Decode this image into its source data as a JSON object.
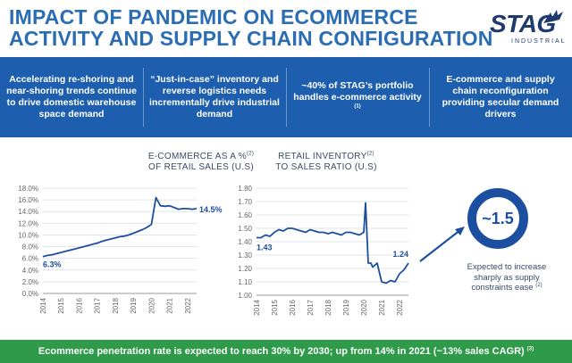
{
  "header": {
    "title_line1": "IMPACT OF PANDEMIC ON ECOMMERCE",
    "title_line2": "ACTIVITY AND SUPPLY CHAIN CONFIGURATION"
  },
  "logo": {
    "word": "STAG",
    "sub": "INDUSTRIAL"
  },
  "banner": {
    "panels": [
      {
        "text": "Accelerating re-shoring and near-shoring trends continue to drive domestic warehouse space demand",
        "note": ""
      },
      {
        "text": "“Just-in-case” inventory and reverse logistics needs incrementally drive industrial demand",
        "note": ""
      },
      {
        "text": "~40% of STAG’s portfolio handles e-commerce activity",
        "note": "(1)"
      },
      {
        "text": "E-commerce and supply chain reconfiguration providing secular demand drivers",
        "note": ""
      }
    ]
  },
  "chart_data": [
    {
      "type": "line",
      "title_line1": "E-COMMERCE AS A %",
      "title_note": "(2)",
      "title_line2": "OF RETAIL SALES (U.S)",
      "x_ticks": [
        "2014",
        "2015",
        "2016",
        "2017",
        "2018",
        "2019",
        "2020",
        "2021",
        "2022"
      ],
      "y_ticks": [
        "0.0%",
        "2.0%",
        "4.0%",
        "6.0%",
        "8.0%",
        "10.0%",
        "12.0%",
        "14.0%",
        "16.0%",
        "18.0%"
      ],
      "ylim": [
        0,
        18
      ],
      "xlim": [
        2014,
        2022.5
      ],
      "grid": true,
      "color": "#1d4fa0",
      "series": [
        {
          "x": [
            2014.0,
            2014.25,
            2014.5,
            2014.75,
            2015.0,
            2015.25,
            2015.5,
            2015.75,
            2016.0,
            2016.25,
            2016.5,
            2016.75,
            2017.0,
            2017.25,
            2017.5,
            2017.75,
            2018.0,
            2018.25,
            2018.5,
            2018.75,
            2019.0,
            2019.25,
            2019.5,
            2019.75,
            2020.0,
            2020.25,
            2020.5,
            2020.75,
            2021.0,
            2021.25,
            2021.5,
            2021.75,
            2022.0,
            2022.25,
            2022.5
          ],
          "y": [
            6.3,
            6.5,
            6.6,
            6.8,
            7.0,
            7.2,
            7.4,
            7.6,
            7.8,
            8.0,
            8.2,
            8.4,
            8.6,
            8.9,
            9.1,
            9.3,
            9.5,
            9.7,
            9.8,
            10.0,
            10.3,
            10.6,
            10.9,
            11.3,
            11.8,
            16.4,
            15.0,
            14.9,
            15.0,
            14.7,
            14.4,
            14.5,
            14.5,
            14.4,
            14.5
          ]
        }
      ],
      "annotations": [
        {
          "text": "6.3%",
          "x": 2014.0,
          "y": 6.3
        },
        {
          "text": "14.5%",
          "x": 2022.5,
          "y": 14.5
        }
      ]
    },
    {
      "type": "line",
      "title_line1": "RETAIL INVENTORY",
      "title_note": "(2)",
      "title_line2": "TO SALES RATIO (U.S)",
      "x_ticks": [
        "2014",
        "2015",
        "2016",
        "2017",
        "2018",
        "2019",
        "2020",
        "2021",
        "2022"
      ],
      "y_ticks": [
        "1.00",
        "1.10",
        "1.20",
        "1.30",
        "1.40",
        "1.50",
        "1.60",
        "1.70",
        "1.80"
      ],
      "ylim": [
        1.0,
        1.8
      ],
      "xlim": [
        2014,
        2022.5
      ],
      "grid": true,
      "color": "#1d4fa0",
      "series": [
        {
          "x": [
            2014.0,
            2014.25,
            2014.5,
            2014.75,
            2015.0,
            2015.25,
            2015.5,
            2015.75,
            2016.0,
            2016.25,
            2016.5,
            2016.75,
            2017.0,
            2017.25,
            2017.5,
            2017.75,
            2018.0,
            2018.25,
            2018.5,
            2018.75,
            2019.0,
            2019.25,
            2019.5,
            2019.75,
            2020.0,
            2020.1,
            2020.25,
            2020.4,
            2020.5,
            2020.75,
            2021.0,
            2021.25,
            2021.5,
            2021.75,
            2022.0,
            2022.25,
            2022.5
          ],
          "y": [
            1.43,
            1.43,
            1.45,
            1.44,
            1.47,
            1.49,
            1.48,
            1.5,
            1.5,
            1.49,
            1.48,
            1.47,
            1.49,
            1.48,
            1.47,
            1.47,
            1.46,
            1.47,
            1.46,
            1.45,
            1.47,
            1.47,
            1.46,
            1.45,
            1.47,
            1.69,
            1.24,
            1.24,
            1.21,
            1.24,
            1.1,
            1.09,
            1.11,
            1.1,
            1.16,
            1.19,
            1.24
          ]
        }
      ],
      "annotations": [
        {
          "text": "1.43",
          "x": 2014.0,
          "y": 1.43
        },
        {
          "text": "1.24",
          "x": 2022.5,
          "y": 1.24
        }
      ]
    }
  ],
  "callout": {
    "value": "~1.5",
    "text": "Expected to increase sharply as supply constraints ease",
    "note": "(2)"
  },
  "footer": {
    "text": "Ecommerce penetration rate is expected to reach 30% by 2030; up from 14% in 2021 (~13% sales CAGR)",
    "note": "(3)"
  },
  "colors": {
    "title": "#2a6db3",
    "banner": "#1d5fae",
    "line": "#1d4fa0",
    "footer": "#2e9a4a"
  }
}
